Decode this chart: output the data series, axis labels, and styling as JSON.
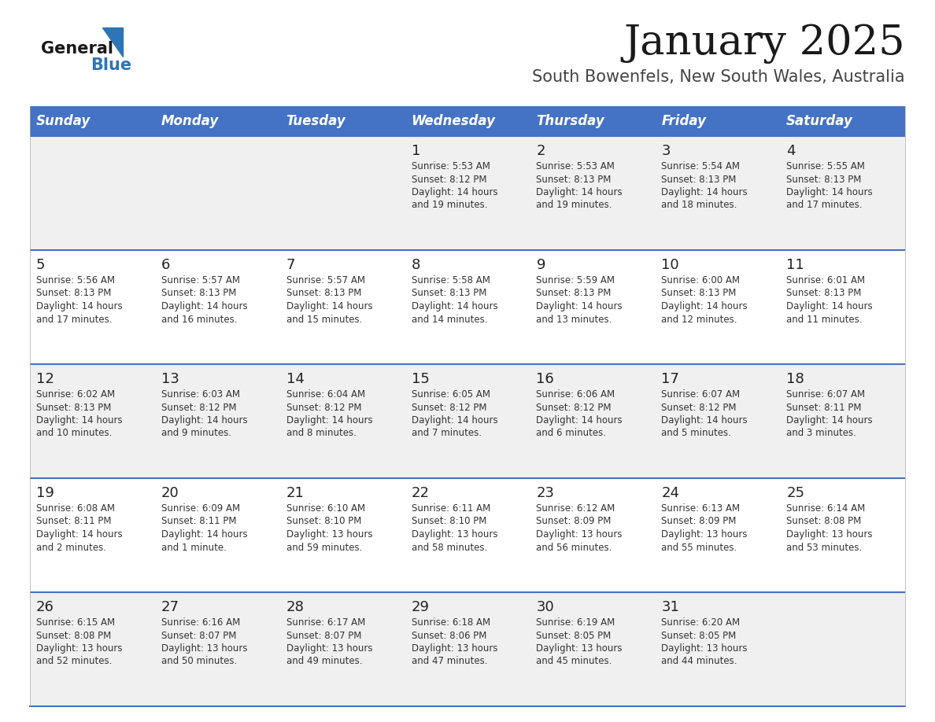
{
  "title": "January 2025",
  "subtitle": "South Bowenfels, New South Wales, Australia",
  "days_of_week": [
    "Sunday",
    "Monday",
    "Tuesday",
    "Wednesday",
    "Thursday",
    "Friday",
    "Saturday"
  ],
  "header_bg": "#4472C4",
  "header_text_color": "#FFFFFF",
  "row_bg_odd": "#F0F0F0",
  "row_bg_even": "#FFFFFF",
  "cell_text_color": "#333333",
  "day_num_color": "#222222",
  "separator_color": "#4472C4",
  "calendar_data": [
    [
      null,
      null,
      null,
      {
        "day": 1,
        "sunrise": "5:53 AM",
        "sunset": "8:12 PM",
        "daylight_hrs": 14,
        "daylight_min": 19
      },
      {
        "day": 2,
        "sunrise": "5:53 AM",
        "sunset": "8:13 PM",
        "daylight_hrs": 14,
        "daylight_min": 19
      },
      {
        "day": 3,
        "sunrise": "5:54 AM",
        "sunset": "8:13 PM",
        "daylight_hrs": 14,
        "daylight_min": 18
      },
      {
        "day": 4,
        "sunrise": "5:55 AM",
        "sunset": "8:13 PM",
        "daylight_hrs": 14,
        "daylight_min": 17
      }
    ],
    [
      {
        "day": 5,
        "sunrise": "5:56 AM",
        "sunset": "8:13 PM",
        "daylight_hrs": 14,
        "daylight_min": 17
      },
      {
        "day": 6,
        "sunrise": "5:57 AM",
        "sunset": "8:13 PM",
        "daylight_hrs": 14,
        "daylight_min": 16
      },
      {
        "day": 7,
        "sunrise": "5:57 AM",
        "sunset": "8:13 PM",
        "daylight_hrs": 14,
        "daylight_min": 15
      },
      {
        "day": 8,
        "sunrise": "5:58 AM",
        "sunset": "8:13 PM",
        "daylight_hrs": 14,
        "daylight_min": 14
      },
      {
        "day": 9,
        "sunrise": "5:59 AM",
        "sunset": "8:13 PM",
        "daylight_hrs": 14,
        "daylight_min": 13
      },
      {
        "day": 10,
        "sunrise": "6:00 AM",
        "sunset": "8:13 PM",
        "daylight_hrs": 14,
        "daylight_min": 12
      },
      {
        "day": 11,
        "sunrise": "6:01 AM",
        "sunset": "8:13 PM",
        "daylight_hrs": 14,
        "daylight_min": 11
      }
    ],
    [
      {
        "day": 12,
        "sunrise": "6:02 AM",
        "sunset": "8:13 PM",
        "daylight_hrs": 14,
        "daylight_min": 10
      },
      {
        "day": 13,
        "sunrise": "6:03 AM",
        "sunset": "8:12 PM",
        "daylight_hrs": 14,
        "daylight_min": 9
      },
      {
        "day": 14,
        "sunrise": "6:04 AM",
        "sunset": "8:12 PM",
        "daylight_hrs": 14,
        "daylight_min": 8
      },
      {
        "day": 15,
        "sunrise": "6:05 AM",
        "sunset": "8:12 PM",
        "daylight_hrs": 14,
        "daylight_min": 7
      },
      {
        "day": 16,
        "sunrise": "6:06 AM",
        "sunset": "8:12 PM",
        "daylight_hrs": 14,
        "daylight_min": 6
      },
      {
        "day": 17,
        "sunrise": "6:07 AM",
        "sunset": "8:12 PM",
        "daylight_hrs": 14,
        "daylight_min": 5
      },
      {
        "day": 18,
        "sunrise": "6:07 AM",
        "sunset": "8:11 PM",
        "daylight_hrs": 14,
        "daylight_min": 3
      }
    ],
    [
      {
        "day": 19,
        "sunrise": "6:08 AM",
        "sunset": "8:11 PM",
        "daylight_hrs": 14,
        "daylight_min": 2
      },
      {
        "day": 20,
        "sunrise": "6:09 AM",
        "sunset": "8:11 PM",
        "daylight_hrs": 14,
        "daylight_min": 1
      },
      {
        "day": 21,
        "sunrise": "6:10 AM",
        "sunset": "8:10 PM",
        "daylight_hrs": 13,
        "daylight_min": 59
      },
      {
        "day": 22,
        "sunrise": "6:11 AM",
        "sunset": "8:10 PM",
        "daylight_hrs": 13,
        "daylight_min": 58
      },
      {
        "day": 23,
        "sunrise": "6:12 AM",
        "sunset": "8:09 PM",
        "daylight_hrs": 13,
        "daylight_min": 56
      },
      {
        "day": 24,
        "sunrise": "6:13 AM",
        "sunset": "8:09 PM",
        "daylight_hrs": 13,
        "daylight_min": 55
      },
      {
        "day": 25,
        "sunrise": "6:14 AM",
        "sunset": "8:08 PM",
        "daylight_hrs": 13,
        "daylight_min": 53
      }
    ],
    [
      {
        "day": 26,
        "sunrise": "6:15 AM",
        "sunset": "8:08 PM",
        "daylight_hrs": 13,
        "daylight_min": 52
      },
      {
        "day": 27,
        "sunrise": "6:16 AM",
        "sunset": "8:07 PM",
        "daylight_hrs": 13,
        "daylight_min": 50
      },
      {
        "day": 28,
        "sunrise": "6:17 AM",
        "sunset": "8:07 PM",
        "daylight_hrs": 13,
        "daylight_min": 49
      },
      {
        "day": 29,
        "sunrise": "6:18 AM",
        "sunset": "8:06 PM",
        "daylight_hrs": 13,
        "daylight_min": 47
      },
      {
        "day": 30,
        "sunrise": "6:19 AM",
        "sunset": "8:05 PM",
        "daylight_hrs": 13,
        "daylight_min": 45
      },
      {
        "day": 31,
        "sunrise": "6:20 AM",
        "sunset": "8:05 PM",
        "daylight_hrs": 13,
        "daylight_min": 44
      },
      null
    ]
  ],
  "logo_text_general": "General",
  "logo_text_blue": "Blue",
  "logo_triangle_color": "#2E75B6",
  "title_fontsize": 38,
  "subtitle_fontsize": 15,
  "header_fontsize": 12,
  "day_num_fontsize": 13,
  "cell_fontsize": 8.5
}
